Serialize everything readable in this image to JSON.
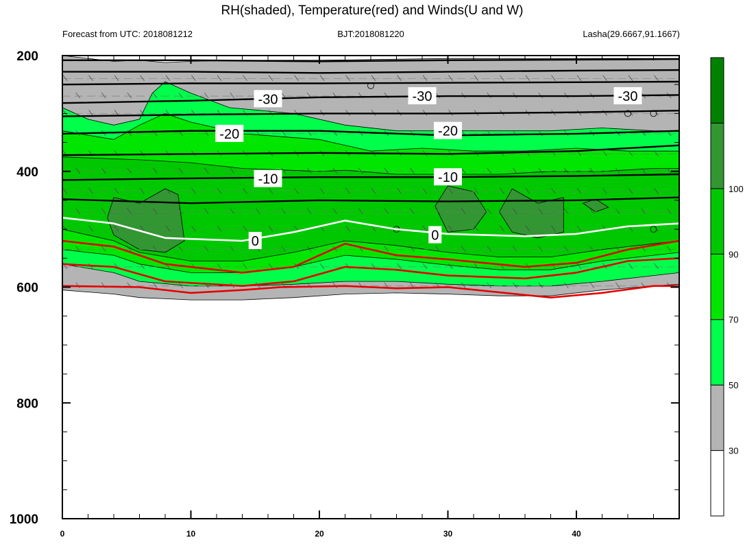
{
  "chart_data": {
    "type": "heatmap",
    "title": "RH(shaded), Temperature(red) and Winds(U and W)",
    "subtitle_left": "Forecast from UTC: 2018081212",
    "subtitle_center": "BJT:2018081220",
    "subtitle_right": "Lasha(29.6667,91.1667)",
    "x_ticks": [
      0,
      10,
      20,
      30,
      40
    ],
    "xlim": [
      0,
      48
    ],
    "y_ticks": [
      200,
      400,
      600,
      800,
      1000
    ],
    "ylim": [
      1000,
      200
    ],
    "colorbar": {
      "ticks": [
        30,
        50,
        70,
        90,
        100
      ],
      "bins": [
        {
          "from": 0,
          "to": 30,
          "color": "#ffffff"
        },
        {
          "from": 30,
          "to": 50,
          "color": "#b4b4b4"
        },
        {
          "from": 50,
          "to": 70,
          "color": "#00ff4b"
        },
        {
          "from": 70,
          "to": 80,
          "color": "#00e600"
        },
        {
          "from": 80,
          "to": 90,
          "color": "#00c800"
        },
        {
          "from": 90,
          "to": 100,
          "color": "#329632"
        },
        {
          "from": 100,
          "to": 110,
          "color": "#008200"
        }
      ]
    },
    "rh_levels": [
      {
        "level": 30,
        "upper": [
          [
            0,
            200
          ],
          [
            2,
            205
          ],
          [
            4,
            210
          ],
          [
            6,
            208
          ],
          [
            8,
            212
          ],
          [
            10,
            210
          ],
          [
            14,
            208
          ],
          [
            20,
            208
          ],
          [
            30,
            205
          ],
          [
            40,
            205
          ],
          [
            44,
            205
          ],
          [
            48,
            205
          ]
        ],
        "lower": [
          [
            0,
            605
          ],
          [
            4,
            612
          ],
          [
            6,
            618
          ],
          [
            10,
            622
          ],
          [
            14,
            622
          ],
          [
            18,
            618
          ],
          [
            22,
            612
          ],
          [
            26,
            610
          ],
          [
            30,
            612
          ],
          [
            34,
            615
          ],
          [
            38,
            615
          ],
          [
            42,
            605
          ],
          [
            46,
            598
          ],
          [
            48,
            595
          ]
        ]
      },
      {
        "level": 50,
        "upper": [
          [
            0,
            290
          ],
          [
            2,
            310
          ],
          [
            4,
            320
          ],
          [
            6,
            310
          ],
          [
            7,
            265
          ],
          [
            8,
            245
          ],
          [
            10,
            265
          ],
          [
            13,
            290
          ],
          [
            18,
            300
          ],
          [
            22,
            320
          ],
          [
            26,
            330
          ],
          [
            30,
            330
          ],
          [
            34,
            330
          ],
          [
            38,
            330
          ],
          [
            42,
            325
          ],
          [
            46,
            330
          ],
          [
            48,
            330
          ]
        ],
        "lower": [
          [
            0,
            560
          ],
          [
            4,
            575
          ],
          [
            6,
            590
          ],
          [
            10,
            598
          ],
          [
            14,
            598
          ],
          [
            18,
            595
          ],
          [
            22,
            590
          ],
          [
            26,
            590
          ],
          [
            30,
            595
          ],
          [
            34,
            598
          ],
          [
            38,
            598
          ],
          [
            42,
            590
          ],
          [
            46,
            580
          ],
          [
            48,
            575
          ]
        ]
      },
      {
        "level": 70,
        "upper": [
          [
            0,
            330
          ],
          [
            4,
            345
          ],
          [
            6,
            320
          ],
          [
            8,
            300
          ],
          [
            10,
            315
          ],
          [
            14,
            335
          ],
          [
            20,
            345
          ],
          [
            24,
            365
          ],
          [
            28,
            360
          ],
          [
            32,
            365
          ],
          [
            36,
            365
          ],
          [
            40,
            360
          ],
          [
            44,
            365
          ],
          [
            48,
            365
          ]
        ],
        "lower": [
          [
            0,
            535
          ],
          [
            4,
            545
          ],
          [
            6,
            560
          ],
          [
            10,
            575
          ],
          [
            14,
            575
          ],
          [
            18,
            565
          ],
          [
            22,
            545
          ],
          [
            26,
            552
          ],
          [
            30,
            562
          ],
          [
            34,
            570
          ],
          [
            38,
            570
          ],
          [
            42,
            555
          ],
          [
            46,
            545
          ],
          [
            48,
            540
          ]
        ]
      },
      {
        "level": 80,
        "upper": [
          [
            0,
            375
          ],
          [
            6,
            380
          ],
          [
            10,
            385
          ],
          [
            14,
            395
          ],
          [
            20,
            400
          ],
          [
            22,
            398
          ],
          [
            26,
            405
          ],
          [
            30,
            405
          ],
          [
            34,
            405
          ],
          [
            38,
            400
          ],
          [
            42,
            400
          ],
          [
            46,
            395
          ],
          [
            48,
            395
          ]
        ],
        "lower": [
          [
            0,
            500
          ],
          [
            4,
            520
          ],
          [
            6,
            540
          ],
          [
            10,
            555
          ],
          [
            14,
            555
          ],
          [
            18,
            540
          ],
          [
            22,
            520
          ],
          [
            26,
            528
          ],
          [
            30,
            540
          ],
          [
            34,
            548
          ],
          [
            38,
            548
          ],
          [
            42,
            535
          ],
          [
            46,
            525
          ],
          [
            48,
            520
          ]
        ]
      }
    ],
    "rh_patches": [
      {
        "level": 90,
        "points": [
          [
            3.5,
            480
          ],
          [
            4,
            445
          ],
          [
            6,
            455
          ],
          [
            8,
            430
          ],
          [
            9,
            440
          ],
          [
            9.5,
            520
          ],
          [
            8,
            540
          ],
          [
            6,
            535
          ],
          [
            4,
            510
          ]
        ]
      },
      {
        "level": 90,
        "points": [
          [
            29,
            460
          ],
          [
            30,
            425
          ],
          [
            32,
            435
          ],
          [
            33,
            470
          ],
          [
            32,
            500
          ],
          [
            30,
            505
          ]
        ]
      },
      {
        "level": 90,
        "points": [
          [
            34,
            470
          ],
          [
            35,
            430
          ],
          [
            37,
            455
          ],
          [
            39,
            445
          ],
          [
            39,
            505
          ],
          [
            37,
            515
          ],
          [
            35,
            505
          ]
        ]
      },
      {
        "level": 90,
        "points": [
          [
            40.5,
            455
          ],
          [
            41.5,
            448
          ],
          [
            42.5,
            462
          ],
          [
            41.5,
            470
          ]
        ]
      }
    ],
    "isotherms": [
      {
        "color": "#000000",
        "label": "",
        "points": [
          [
            0,
            208
          ],
          [
            10,
            208
          ],
          [
            20,
            210
          ],
          [
            30,
            208
          ],
          [
            40,
            207
          ],
          [
            48,
            206
          ]
        ]
      },
      {
        "color": "#000000",
        "label": "",
        "points": [
          [
            0,
            228
          ],
          [
            10,
            228
          ],
          [
            20,
            230
          ],
          [
            30,
            228
          ],
          [
            40,
            226
          ],
          [
            48,
            225
          ]
        ]
      },
      {
        "color": "#000000",
        "label": "",
        "points": [
          [
            0,
            250
          ],
          [
            10,
            248
          ],
          [
            20,
            248
          ],
          [
            30,
            247
          ],
          [
            40,
            246
          ],
          [
            48,
            245
          ]
        ]
      },
      {
        "color": "#000000",
        "label": "-30",
        "label_at": [
          [
            16,
            275
          ],
          [
            28,
            270
          ],
          [
            44,
            270
          ]
        ],
        "points": [
          [
            0,
            282
          ],
          [
            10,
            278
          ],
          [
            20,
            272
          ],
          [
            30,
            270
          ],
          [
            40,
            270
          ],
          [
            48,
            268
          ]
        ]
      },
      {
        "color": "#000000",
        "label": "",
        "points": [
          [
            0,
            305
          ],
          [
            10,
            302
          ],
          [
            20,
            300
          ],
          [
            30,
            300
          ],
          [
            40,
            298
          ],
          [
            48,
            295
          ]
        ]
      },
      {
        "color": "#000000",
        "label": "-20",
        "label_at": [
          [
            13,
            335
          ],
          [
            30,
            330
          ]
        ],
        "points": [
          [
            0,
            335
          ],
          [
            10,
            330
          ],
          [
            20,
            330
          ],
          [
            30,
            338
          ],
          [
            40,
            335
          ],
          [
            48,
            330
          ]
        ]
      },
      {
        "color": "#000000",
        "label": "",
        "points": [
          [
            0,
            372
          ],
          [
            10,
            370
          ],
          [
            20,
            368
          ],
          [
            30,
            370
          ],
          [
            40,
            365
          ],
          [
            48,
            355
          ]
        ]
      },
      {
        "color": "#000000",
        "label": "-10",
        "label_at": [
          [
            16,
            413
          ],
          [
            30,
            410
          ]
        ],
        "points": [
          [
            0,
            415
          ],
          [
            10,
            412
          ],
          [
            20,
            410
          ],
          [
            30,
            410
          ],
          [
            40,
            408
          ],
          [
            48,
            405
          ]
        ]
      },
      {
        "color": "#000000",
        "label": "",
        "points": [
          [
            0,
            448
          ],
          [
            10,
            455
          ],
          [
            20,
            450
          ],
          [
            30,
            452
          ],
          [
            40,
            450
          ],
          [
            48,
            445
          ]
        ]
      },
      {
        "color": "#ffffff",
        "label": "0",
        "label_at": [
          [
            15,
            520
          ],
          [
            29,
            510
          ]
        ],
        "points": [
          [
            0,
            480
          ],
          [
            4,
            490
          ],
          [
            8,
            515
          ],
          [
            14,
            520
          ],
          [
            18,
            505
          ],
          [
            22,
            485
          ],
          [
            26,
            500
          ],
          [
            30,
            508
          ],
          [
            36,
            512
          ],
          [
            40,
            508
          ],
          [
            44,
            495
          ],
          [
            48,
            490
          ]
        ]
      },
      {
        "color": "#e60000",
        "label": "",
        "points": [
          [
            0,
            520
          ],
          [
            4,
            530
          ],
          [
            8,
            560
          ],
          [
            14,
            575
          ],
          [
            18,
            565
          ],
          [
            22,
            525
          ],
          [
            26,
            545
          ],
          [
            30,
            552
          ],
          [
            36,
            565
          ],
          [
            40,
            558
          ],
          [
            44,
            535
          ],
          [
            48,
            520
          ]
        ]
      },
      {
        "color": "#e60000",
        "label": "",
        "points": [
          [
            0,
            560
          ],
          [
            4,
            565
          ],
          [
            8,
            590
          ],
          [
            14,
            598
          ],
          [
            18,
            590
          ],
          [
            22,
            565
          ],
          [
            26,
            570
          ],
          [
            30,
            580
          ],
          [
            36,
            585
          ],
          [
            40,
            575
          ],
          [
            44,
            555
          ],
          [
            48,
            550
          ]
        ]
      },
      {
        "color": "#e60000",
        "label": "",
        "points": [
          [
            0,
            598
          ],
          [
            6,
            600
          ],
          [
            10,
            610
          ],
          [
            14,
            605
          ],
          [
            17,
            600
          ],
          [
            22,
            598
          ],
          [
            26,
            602
          ],
          [
            30,
            600
          ],
          [
            38,
            618
          ],
          [
            42,
            610
          ],
          [
            46,
            598
          ],
          [
            48,
            598
          ]
        ]
      }
    ],
    "wind_rows": [
      240,
      270,
      300,
      335,
      370,
      400,
      435,
      470,
      500,
      535,
      565,
      598
    ],
    "wind_calm_circles": [
      [
        24,
        252
      ],
      [
        26,
        500
      ],
      [
        44,
        300
      ],
      [
        46,
        300
      ],
      [
        46,
        500
      ]
    ]
  }
}
